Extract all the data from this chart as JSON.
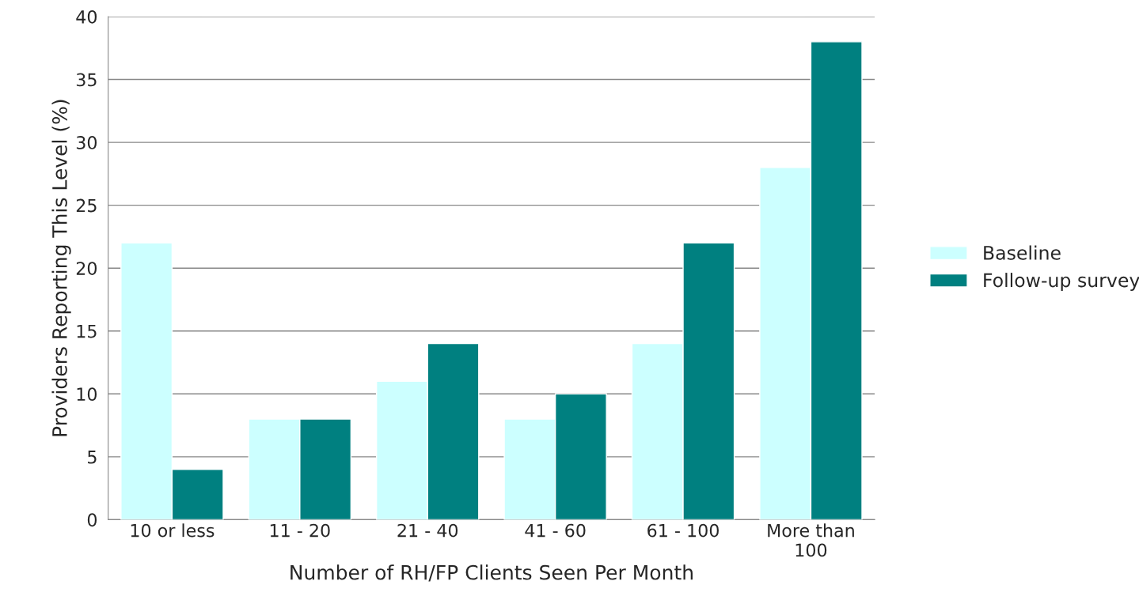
{
  "chart_data": {
    "type": "bar",
    "xlabel": "Number of RH/FP Clients Seen Per Month",
    "ylabel": "Providers Reporting This Level (%)",
    "categories": [
      "10 or less",
      "11 - 20",
      "21 - 40",
      "41 - 60",
      "61 - 100",
      "More than\n100"
    ],
    "series": [
      {
        "name": "Baseline",
        "color": "#ccffff",
        "values": [
          22,
          8,
          11,
          8,
          14,
          28
        ]
      },
      {
        "name": "Follow-up survey",
        "color": "#008080",
        "values": [
          4,
          8,
          14,
          10,
          22,
          38
        ]
      }
    ],
    "ylim": [
      0,
      40
    ],
    "yticks": [
      0,
      5,
      10,
      15,
      20,
      25,
      30,
      35,
      40
    ],
    "grid": "y",
    "legend": "right"
  }
}
